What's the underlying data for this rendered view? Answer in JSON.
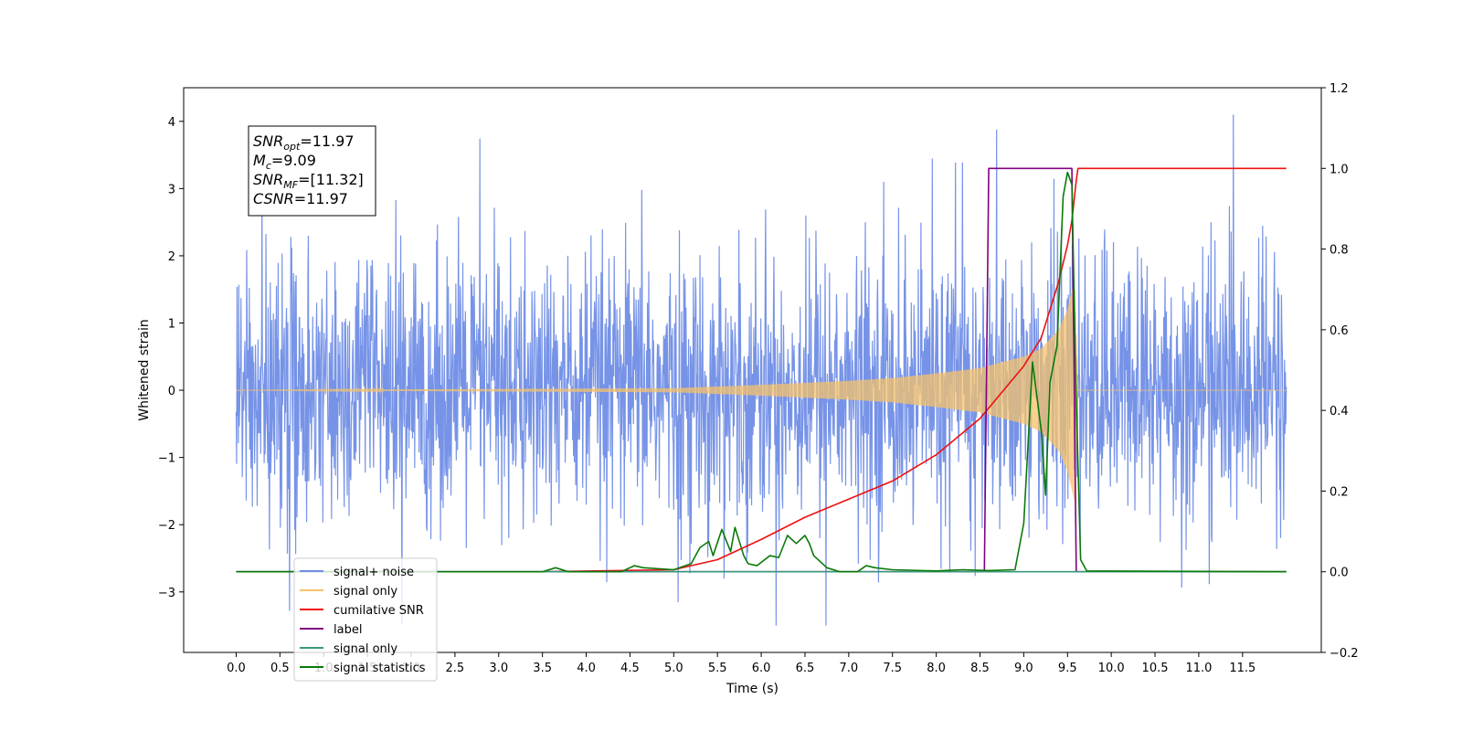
{
  "chart_data": {
    "type": "line",
    "xlabel": "Time (s)",
    "ylabel": "Whitened strain",
    "ylabel_right": "",
    "xlim": [
      -0.6,
      12.4
    ],
    "ylim_left": [
      -3.9,
      4.5
    ],
    "ylim_right": [
      -0.2,
      1.2
    ],
    "x_ticks": [
      0.0,
      0.5,
      1.0,
      1.5,
      2.0,
      2.5,
      3.0,
      3.5,
      4.0,
      4.5,
      5.0,
      5.5,
      6.0,
      6.5,
      7.0,
      7.5,
      8.0,
      8.5,
      9.0,
      9.5,
      10.0,
      10.5,
      11.0,
      11.5
    ],
    "x_tick_labels": [
      "0.0",
      "0.5",
      "1.0",
      "1.5",
      "2.0",
      "2.5",
      "3.0",
      "3.5",
      "4.0",
      "4.5",
      "5.0",
      "5.5",
      "6.0",
      "6.5",
      "7.0",
      "7.5",
      "8.0",
      "8.5",
      "9.0",
      "9.5",
      "10.0",
      "10.5",
      "11.0",
      "11.5"
    ],
    "y_ticks_left": [
      -3,
      -2,
      -1,
      0,
      1,
      2,
      3,
      4
    ],
    "y_tick_labels_left": [
      "−3",
      "−2",
      "−1",
      "0",
      "1",
      "2",
      "3",
      "4"
    ],
    "y_ticks_right": [
      -0.2,
      0.0,
      0.2,
      0.4,
      0.6,
      0.8,
      1.0,
      1.2
    ],
    "y_tick_labels_right": [
      "−0.2",
      "0.0",
      "0.2",
      "0.4",
      "0.6",
      "0.8",
      "1.0",
      "1.2"
    ],
    "grid": false,
    "legend_position": "lower-left",
    "annotation": {
      "lines": [
        {
          "base": "SNR",
          "sub": "opt",
          "value": "=11.97"
        },
        {
          "base": "M",
          "sub": "c",
          "value": "=9.09"
        },
        {
          "base": "SNR",
          "sub": "MF",
          "value": "=[11.32]"
        },
        {
          "base": "CSNR",
          "sub": "",
          "value": "=11.97"
        }
      ]
    },
    "series": [
      {
        "name": "signal+ noise",
        "axis": "left",
        "color": "#6f8de6",
        "style": "noise",
        "description_values": {
          "x_start": 0.0,
          "x_end": 12.0,
          "typical_amplitude": 1.5,
          "max": 4.1,
          "min": -3.5
        }
      },
      {
        "name": "signal only",
        "axis": "left",
        "color": "#f5c26b",
        "style": "chirp-envelope",
        "envelope_x": [
          0.0,
          5.0,
          6.0,
          7.0,
          7.5,
          8.0,
          8.5,
          9.0,
          9.2,
          9.4,
          9.5,
          9.58,
          9.62,
          12.0
        ],
        "envelope_y": [
          0.0,
          0.03,
          0.08,
          0.14,
          0.18,
          0.25,
          0.33,
          0.5,
          0.62,
          0.9,
          1.2,
          1.65,
          0.0,
          0.0
        ]
      },
      {
        "name": "cumilative SNR",
        "axis": "right",
        "color": "#ee1111",
        "x": [
          3.5,
          5.0,
          5.5,
          6.0,
          6.5,
          7.0,
          7.5,
          8.0,
          8.5,
          9.0,
          9.2,
          9.4,
          9.5,
          9.55,
          9.6,
          9.62,
          12.0
        ],
        "y": [
          0.0,
          0.005,
          0.03,
          0.08,
          0.135,
          0.18,
          0.225,
          0.29,
          0.38,
          0.51,
          0.58,
          0.72,
          0.81,
          0.87,
          0.97,
          1.0,
          1.0
        ]
      },
      {
        "name": "label",
        "axis": "right",
        "color": "#800080",
        "x": [
          0.0,
          8.55,
          8.6,
          9.55,
          9.6,
          12.0
        ],
        "y": [
          0.0,
          0.0,
          1.0,
          1.0,
          0.0,
          0.0
        ]
      },
      {
        "name": "signal only",
        "axis": "right",
        "color": "#3a9a7c",
        "x": [
          0.0,
          12.0
        ],
        "y": [
          0.0,
          0.0
        ]
      },
      {
        "name": "signal statistics",
        "axis": "right",
        "color": "#0a7a0a",
        "x": [
          0.0,
          3.5,
          3.65,
          3.8,
          4.4,
          4.55,
          4.65,
          5.0,
          5.2,
          5.3,
          5.4,
          5.45,
          5.55,
          5.65,
          5.7,
          5.8,
          5.85,
          5.95,
          6.1,
          6.2,
          6.3,
          6.4,
          6.5,
          6.55,
          6.6,
          6.75,
          6.9,
          7.1,
          7.2,
          7.3,
          7.5,
          8.0,
          8.3,
          8.6,
          8.9,
          9.0,
          9.1,
          9.2,
          9.25,
          9.3,
          9.38,
          9.45,
          9.5,
          9.55,
          9.6,
          9.65,
          9.72,
          12.0
        ],
        "y": [
          0.0,
          0.0,
          0.01,
          0.0,
          0.0,
          0.015,
          0.01,
          0.005,
          0.02,
          0.06,
          0.075,
          0.04,
          0.105,
          0.05,
          0.11,
          0.04,
          0.02,
          0.015,
          0.04,
          0.035,
          0.09,
          0.07,
          0.09,
          0.07,
          0.04,
          0.01,
          0.0,
          0.0,
          0.015,
          0.01,
          0.005,
          0.002,
          0.005,
          0.003,
          0.005,
          0.12,
          0.52,
          0.35,
          0.19,
          0.47,
          0.56,
          0.93,
          0.99,
          0.96,
          0.42,
          0.03,
          0.002,
          0.0
        ]
      }
    ]
  }
}
